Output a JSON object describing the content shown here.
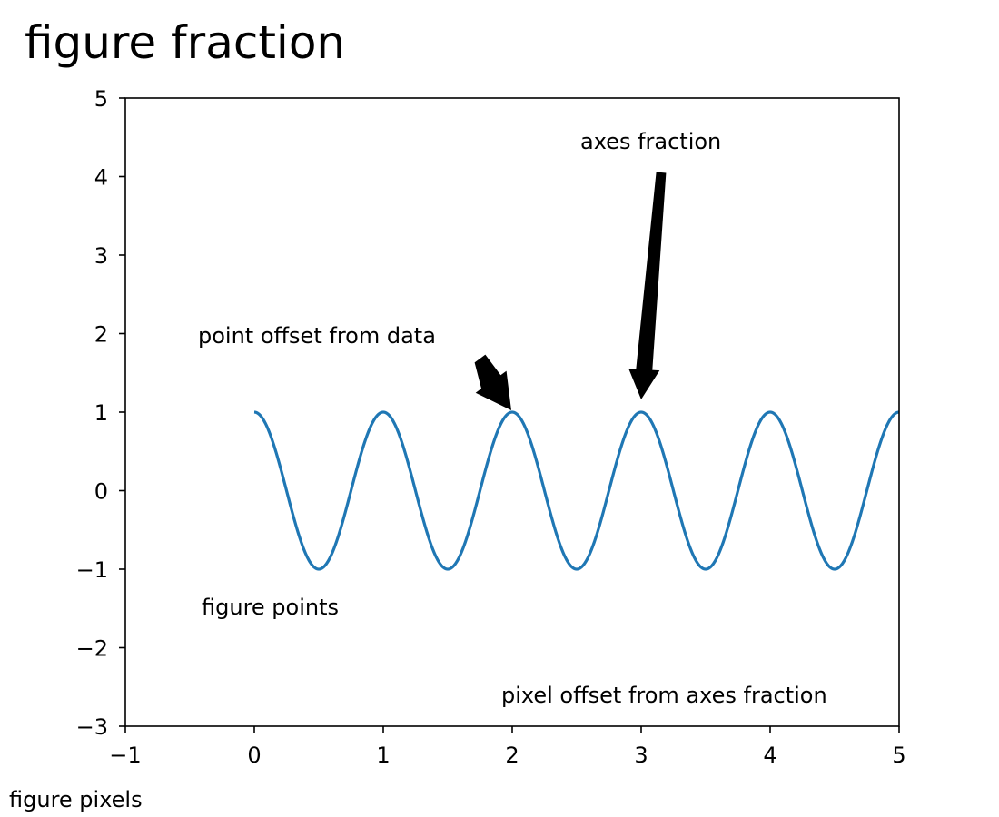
{
  "chart_data": {
    "type": "line",
    "title": "figure fraction",
    "xlabel": "",
    "ylabel": "",
    "xlim": [
      -1,
      5
    ],
    "ylim": [
      -3,
      5
    ],
    "x_ticks": [
      -1,
      0,
      1,
      2,
      3,
      4,
      5
    ],
    "y_ticks": [
      -3,
      -2,
      -1,
      0,
      1,
      2,
      3,
      4,
      5
    ],
    "x_tick_labels": [
      "−1",
      "0",
      "1",
      "2",
      "3",
      "4",
      "5"
    ],
    "y_tick_labels": [
      "−3",
      "−2",
      "−1",
      "0",
      "1",
      "2",
      "3",
      "4",
      "5"
    ],
    "grid": false,
    "series": [
      {
        "function": "cos(2*pi*x)",
        "x_range": [
          0,
          5
        ],
        "color": "#1f77b4"
      }
    ],
    "annotations": {
      "point_offset": {
        "text": "point offset from data",
        "target": [
          2,
          1
        ],
        "arrow": true
      },
      "axes_fraction": {
        "text": "axes fraction",
        "target": [
          3,
          1
        ],
        "arrow": true
      },
      "figure_points": {
        "text": "figure points"
      },
      "pixel_offset": {
        "text": "pixel offset from axes fraction"
      },
      "figure_pixels": {
        "text": "figure pixels"
      }
    }
  }
}
